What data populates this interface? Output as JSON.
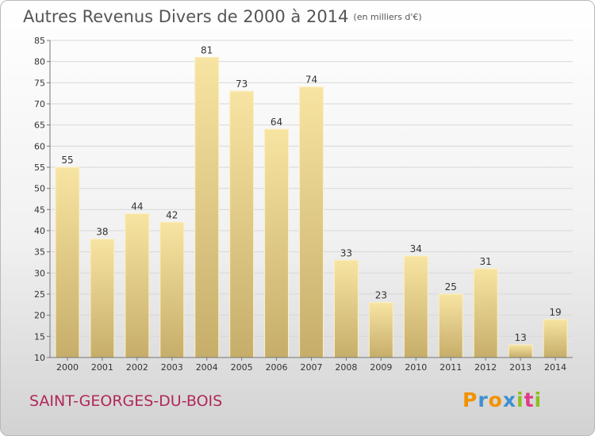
{
  "chart_data": {
    "type": "bar",
    "title": "Autres Revenus Divers de 2000 à 2014",
    "subtitle": "(en milliers d'€)",
    "categories": [
      "2000",
      "2001",
      "2002",
      "2003",
      "2004",
      "2005",
      "2006",
      "2007",
      "2008",
      "2009",
      "2010",
      "2011",
      "2012",
      "2013",
      "2014"
    ],
    "values": [
      55,
      38,
      44,
      42,
      81,
      73,
      64,
      74,
      33,
      23,
      34,
      25,
      31,
      13,
      19
    ],
    "ylim": [
      10,
      85
    ],
    "yticks": [
      10,
      15,
      20,
      25,
      30,
      35,
      40,
      45,
      50,
      55,
      60,
      65,
      70,
      75,
      80,
      85
    ],
    "grid": true,
    "legend": "none"
  },
  "footer": {
    "location": "SAINT-GEORGES-DU-BOIS",
    "brand": [
      "P",
      "r",
      "o",
      "x",
      "i",
      "t",
      "i"
    ]
  },
  "colors": {
    "bar_light": "#f8e4a2",
    "bar_dark": "#c6ad6a",
    "bar_edge": "#fbefc2",
    "grid": "#d8d8d8",
    "location_text": "#b0285a",
    "brand_letters": [
      "#f29200",
      "#3f8fd2",
      "#f29200",
      "#3f8fd2",
      "#8fbf1f",
      "#e23a8a",
      "#8fbf1f"
    ]
  }
}
